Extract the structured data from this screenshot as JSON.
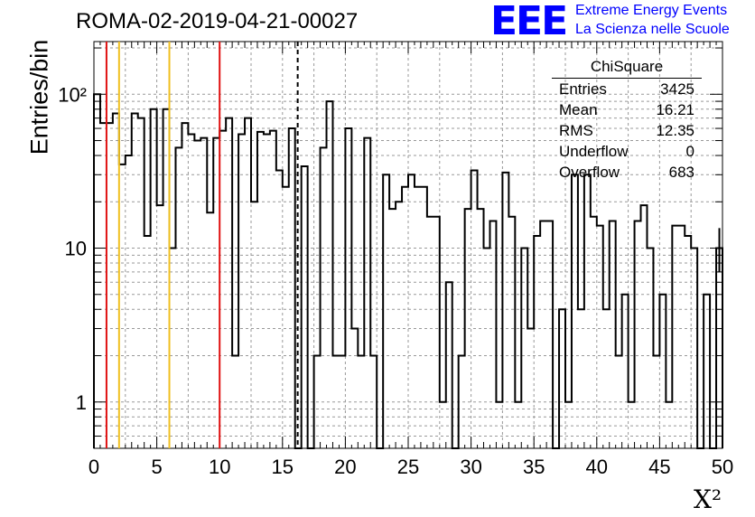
{
  "header": {
    "title": "ROMA-02-2019-04-21-00027",
    "logo_letters": "EEE",
    "logo_line1": "Extreme Energy Events",
    "logo_line2": "La Scienza nelle Scuole"
  },
  "stats_box": {
    "title": "ChiSquare",
    "rows": [
      {
        "label": "Entries",
        "value": "3425"
      },
      {
        "label": "Mean",
        "value": "16.21"
      },
      {
        "label": "RMS",
        "value": "12.35"
      },
      {
        "label": "Underflow",
        "value": "0"
      },
      {
        "label": "Overflow",
        "value": "683"
      }
    ]
  },
  "chart_data": {
    "type": "bar",
    "title": "ROMA-02-2019-04-21-00027",
    "xlabel": "X²",
    "ylabel": "Entries/bin",
    "xlim": [
      0,
      50
    ],
    "ylim": [
      0.5,
      220
    ],
    "yscale": "log",
    "grid": true,
    "x_ticks": [
      0,
      5,
      10,
      15,
      20,
      25,
      30,
      35,
      40,
      45,
      50
    ],
    "y_ticks": [
      {
        "value": 1,
        "label": "1"
      },
      {
        "value": 10,
        "label": "10"
      },
      {
        "value": 100,
        "label": "10²"
      }
    ],
    "bin_width": 0.5,
    "bin_start": 0,
    "values": [
      100,
      65,
      65,
      75,
      35,
      40,
      75,
      70,
      12,
      80,
      19,
      80,
      10,
      45,
      65,
      55,
      50,
      52,
      17,
      52,
      58,
      70,
      2,
      55,
      70,
      20,
      57,
      55,
      58,
      32,
      25,
      60,
      0,
      34,
      0,
      2,
      45,
      90,
      2,
      2,
      60,
      3,
      2,
      52,
      2,
      0,
      30,
      18,
      20,
      25,
      30,
      25,
      25,
      16,
      16,
      1,
      6,
      0,
      2,
      18,
      32,
      18,
      10,
      15,
      1,
      31,
      16,
      1,
      10,
      3,
      12,
      15,
      15,
      0,
      4,
      1,
      30,
      4,
      30,
      16,
      14,
      4,
      15,
      2,
      5,
      1,
      15,
      19,
      10,
      2,
      5,
      1,
      14,
      14,
      12,
      10,
      0,
      5,
      0,
      10
    ],
    "vertical_lines": [
      {
        "x": 1,
        "color": "#e01010",
        "style": "solid"
      },
      {
        "x": 2,
        "color": "#f0c020",
        "style": "solid"
      },
      {
        "x": 6,
        "color": "#f0c020",
        "style": "solid"
      },
      {
        "x": 10,
        "color": "#e01010",
        "style": "solid"
      },
      {
        "x": 16.21,
        "color": "#000000",
        "style": "dashed"
      }
    ],
    "colors": {
      "histogram": "#000000",
      "logo": "#0000ff"
    }
  }
}
